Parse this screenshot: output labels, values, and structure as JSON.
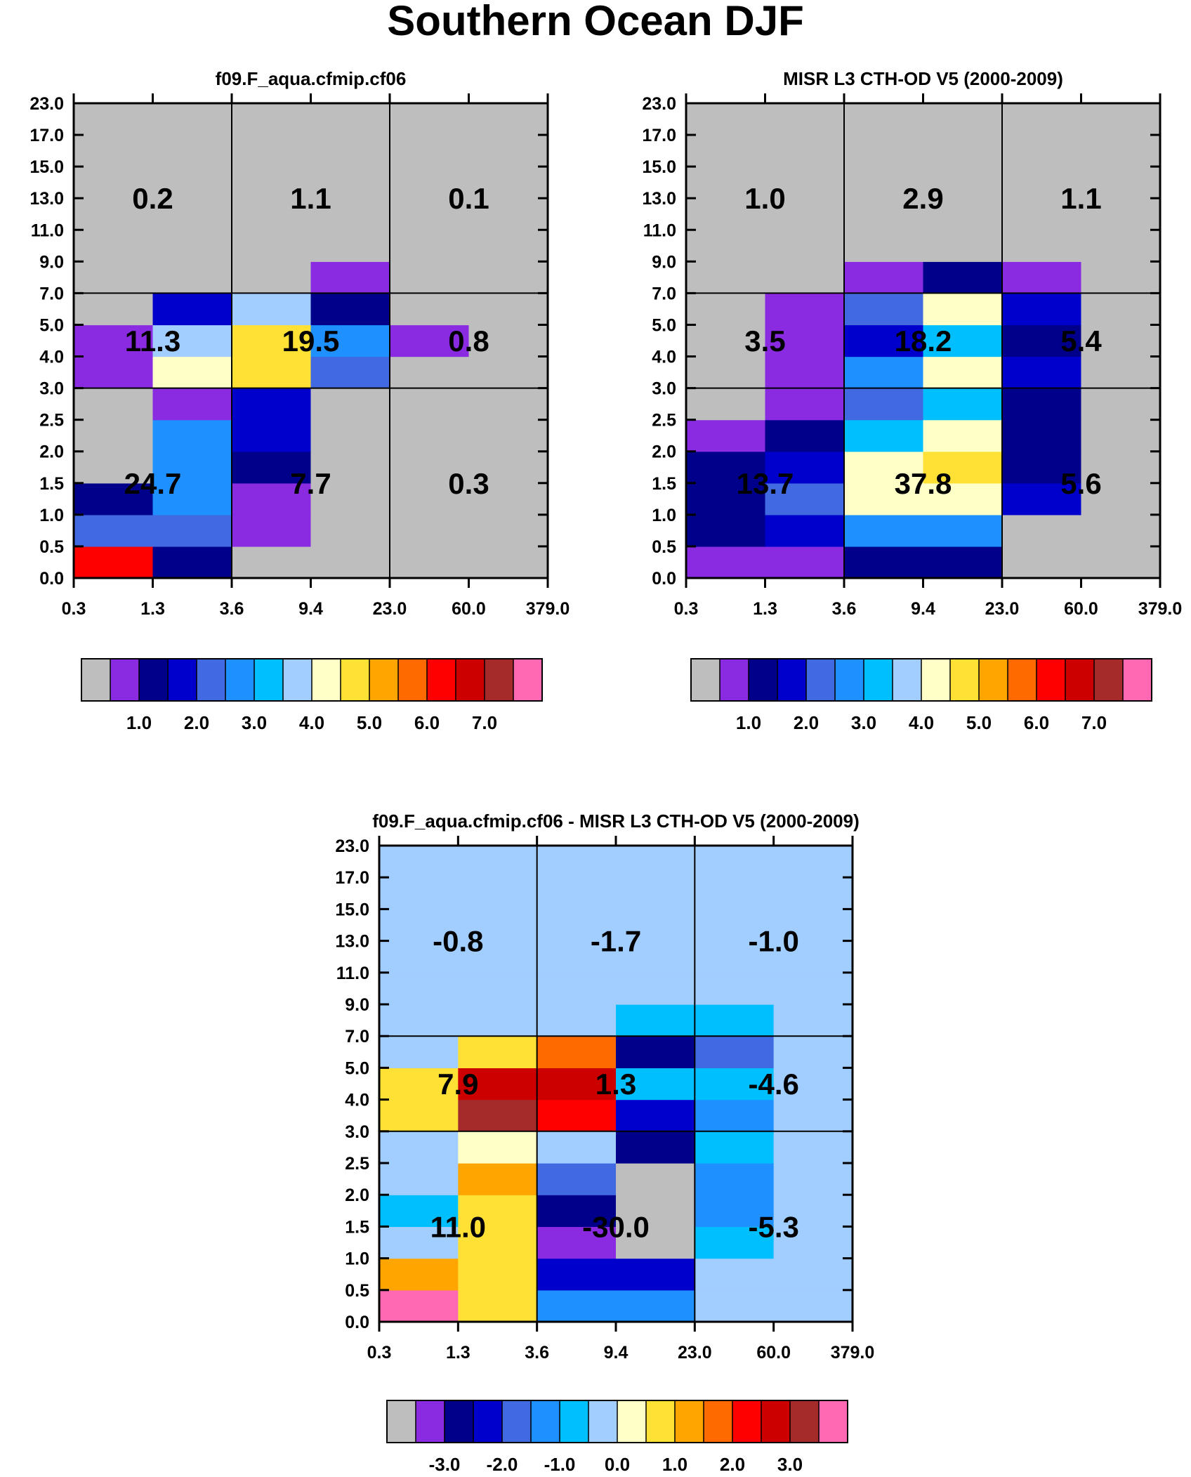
{
  "page_title": "Southern Ocean DJF",
  "chart_data": [
    {
      "type": "heatmap",
      "title": "f09.F_aqua.cfmip.cf06",
      "x_edges": [
        "0.3",
        "1.3",
        "3.6",
        "9.4",
        "23.0",
        "60.0",
        "379.0"
      ],
      "y_edges": [
        "0.0",
        "0.5",
        "1.0",
        "1.5",
        "2.0",
        "2.5",
        "3.0",
        "4.0",
        "5.0",
        "7.0",
        "9.0",
        "11.0",
        "13.0",
        "15.0",
        "17.0",
        "23.0"
      ],
      "cell_color_index": [
        [
          12,
          2,
          0,
          0,
          0,
          0
        ],
        [
          4,
          4,
          1,
          0,
          0,
          0
        ],
        [
          2,
          5,
          1,
          0,
          0,
          0
        ],
        [
          0,
          5,
          2,
          0,
          0,
          0
        ],
        [
          0,
          5,
          3,
          0,
          0,
          0
        ],
        [
          0,
          1,
          3,
          0,
          0,
          0
        ],
        [
          1,
          8,
          9,
          4,
          0,
          0
        ],
        [
          1,
          7,
          9,
          5,
          1,
          0
        ],
        [
          0,
          3,
          7,
          2,
          0,
          0
        ],
        [
          0,
          0,
          0,
          1,
          0,
          0
        ],
        [
          0,
          0,
          0,
          0,
          0,
          0
        ],
        [
          0,
          0,
          0,
          0,
          0,
          0
        ],
        [
          0,
          0,
          0,
          0,
          0,
          0
        ],
        [
          0,
          0,
          0,
          0,
          0,
          0
        ],
        [
          0,
          0,
          0,
          0,
          0,
          0
        ]
      ],
      "region_totals": [
        [
          "24.7",
          "7.7",
          "0.3"
        ],
        [
          "11.3",
          "19.5",
          "0.8"
        ],
        [
          "0.2",
          "1.1",
          "0.1"
        ]
      ],
      "colorbar_labels": [
        "1.0",
        "2.0",
        "3.0",
        "4.0",
        "5.0",
        "6.0",
        "7.0"
      ]
    },
    {
      "type": "heatmap",
      "title": "MISR L3 CTH-OD V5 (2000-2009)",
      "x_edges": [
        "0.3",
        "1.3",
        "3.6",
        "9.4",
        "23.0",
        "60.0",
        "379.0"
      ],
      "y_edges": [
        "0.0",
        "0.5",
        "1.0",
        "1.5",
        "2.0",
        "2.5",
        "3.0",
        "4.0",
        "5.0",
        "7.0",
        "9.0",
        "11.0",
        "13.0",
        "15.0",
        "17.0",
        "23.0"
      ],
      "cell_color_index": [
        [
          1,
          1,
          2,
          2,
          0,
          0
        ],
        [
          2,
          3,
          5,
          5,
          0,
          0
        ],
        [
          2,
          4,
          8,
          8,
          3,
          0
        ],
        [
          2,
          3,
          8,
          9,
          2,
          0
        ],
        [
          1,
          2,
          6,
          8,
          2,
          0
        ],
        [
          0,
          1,
          4,
          6,
          2,
          0
        ],
        [
          0,
          1,
          5,
          8,
          3,
          0
        ],
        [
          0,
          1,
          3,
          6,
          2,
          0
        ],
        [
          0,
          1,
          4,
          8,
          3,
          0
        ],
        [
          0,
          0,
          1,
          2,
          1,
          0
        ],
        [
          0,
          0,
          0,
          0,
          0,
          0
        ],
        [
          0,
          0,
          0,
          0,
          0,
          0
        ],
        [
          0,
          0,
          0,
          0,
          0,
          0
        ],
        [
          0,
          0,
          0,
          0,
          0,
          0
        ],
        [
          0,
          0,
          0,
          0,
          0,
          0
        ]
      ],
      "region_totals": [
        [
          "13.7",
          "37.8",
          "5.6"
        ],
        [
          "3.5",
          "18.2",
          "5.4"
        ],
        [
          "1.0",
          "2.9",
          "1.1"
        ]
      ],
      "colorbar_labels": [
        "1.0",
        "2.0",
        "3.0",
        "4.0",
        "5.0",
        "6.0",
        "7.0"
      ]
    },
    {
      "type": "heatmap",
      "title": "f09.F_aqua.cfmip.cf06 - MISR L3 CTH-OD V5 (2000-2009)",
      "x_edges": [
        "0.3",
        "1.3",
        "3.6",
        "9.4",
        "23.0",
        "60.0",
        "379.0"
      ],
      "y_edges": [
        "0.0",
        "0.5",
        "1.0",
        "1.5",
        "2.0",
        "2.5",
        "3.0",
        "4.0",
        "5.0",
        "7.0",
        "9.0",
        "11.0",
        "13.0",
        "15.0",
        "17.0",
        "23.0"
      ],
      "cell_color_index": [
        [
          15,
          9,
          5,
          5,
          7,
          7
        ],
        [
          10,
          9,
          3,
          3,
          7,
          7
        ],
        [
          7,
          9,
          1,
          0,
          6,
          7
        ],
        [
          6,
          9,
          2,
          0,
          5,
          7
        ],
        [
          7,
          10,
          4,
          0,
          5,
          7
        ],
        [
          7,
          8,
          7,
          2,
          6,
          7
        ],
        [
          9,
          14,
          12,
          3,
          5,
          7
        ],
        [
          9,
          13,
          13,
          6,
          6,
          7
        ],
        [
          7,
          9,
          11,
          2,
          4,
          7
        ],
        [
          7,
          7,
          7,
          6,
          6,
          7
        ],
        [
          7,
          7,
          7,
          7,
          7,
          7
        ],
        [
          7,
          7,
          7,
          7,
          7,
          7
        ],
        [
          7,
          7,
          7,
          7,
          7,
          7
        ],
        [
          7,
          7,
          7,
          7,
          7,
          7
        ],
        [
          7,
          7,
          7,
          7,
          7,
          7
        ]
      ],
      "region_totals": [
        [
          "11.0",
          "-30.0",
          "-5.3"
        ],
        [
          "7.9",
          "1.3",
          "-4.6"
        ],
        [
          "-0.8",
          "-1.7",
          "-1.0"
        ]
      ],
      "colorbar_labels": [
        "-3.0",
        "-2.0",
        "-1.0",
        "0.0",
        "1.0",
        "2.0",
        "3.0"
      ]
    }
  ],
  "palette": [
    "#bebebe",
    "#8a2be2",
    "#00008b",
    "#0000cd",
    "#4169e1",
    "#1e90ff",
    "#00bfff",
    "#a2cdff",
    "#ffffc8",
    "#ffe135",
    "#ffa500",
    "#ff6a00",
    "#ff0000",
    "#cd0000",
    "#a52a2a",
    "#ff69b4"
  ]
}
